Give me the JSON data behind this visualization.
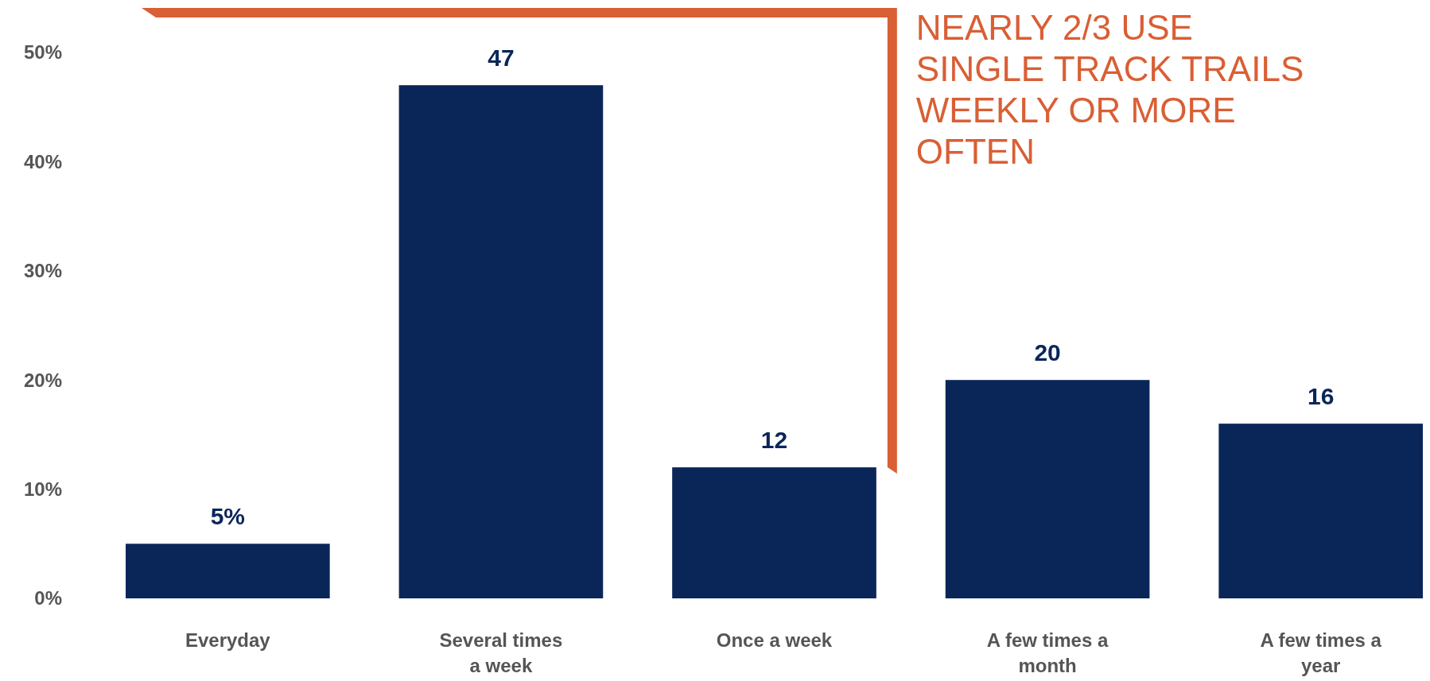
{
  "chart_data": {
    "type": "bar",
    "categories": [
      "Everyday",
      "Several times a week",
      "Once a week",
      "A few times a month",
      "A few times a year"
    ],
    "values": [
      5,
      47,
      12,
      20,
      16
    ],
    "value_labels": [
      "5%",
      "47",
      "12",
      "20",
      "16"
    ],
    "color": "#0a2659",
    "ylim": [
      0,
      50
    ],
    "yticks": [
      {
        "value": 0,
        "label": "0%"
      },
      {
        "value": 10,
        "label": "10%"
      },
      {
        "value": 20,
        "label": "20%"
      },
      {
        "value": 30,
        "label": "30%"
      },
      {
        "value": 40,
        "label": "40%"
      },
      {
        "value": 50,
        "label": "50%"
      }
    ],
    "grid": false,
    "annotations": [
      "NEARLY 2/3 USE SINGLE TRACK TRAILS WEEKLY OR MORE OFTEN"
    ]
  }
}
